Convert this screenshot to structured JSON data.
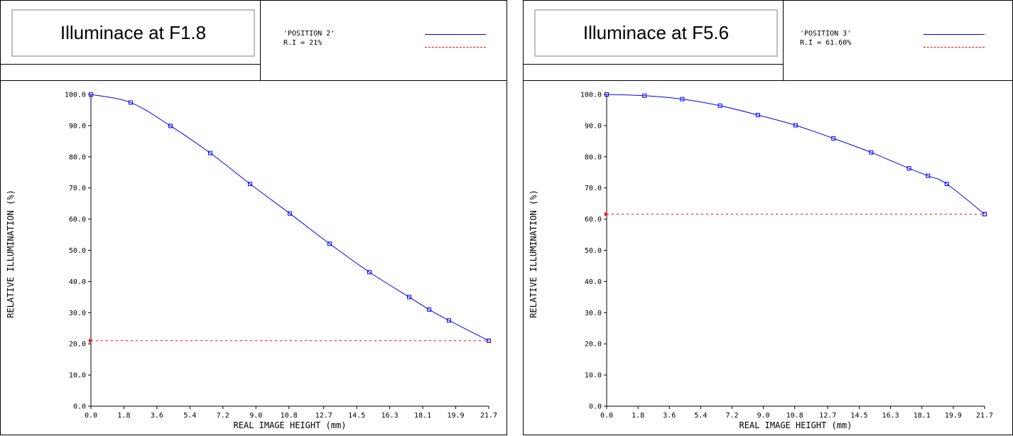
{
  "panels": [
    {
      "title": "Illuminace at F1.8",
      "legend": {
        "series_label": "'POSITION 2'",
        "ri_label": "R.I = 21%"
      }
    },
    {
      "title": "Illuminace at F5.6",
      "legend": {
        "series_label": "'POSITION 3'",
        "ri_label": "R.I = 61.60%"
      }
    }
  ],
  "colors": {
    "series": "#0000ff",
    "reference": "#ff0000"
  },
  "chart_data": [
    {
      "type": "line",
      "title": "Illuminace at F1.8",
      "xlabel": "REAL IMAGE HEIGHT (mm)",
      "ylabel": "RELATIVE ILLUMINATION (%)",
      "xlim": [
        0,
        21.7
      ],
      "ylim": [
        0,
        100
      ],
      "x_ticks": [
        "0.0",
        "1.8",
        "3.6",
        "5.4",
        "7.2",
        "9.0",
        "10.8",
        "12.7",
        "14.5",
        "16.3",
        "18.1",
        "19.9",
        "21.7"
      ],
      "y_ticks": [
        "0.0",
        "10.0",
        "20.0",
        "30.0",
        "40.0",
        "50.0",
        "60.0",
        "70.0",
        "80.0",
        "90.0",
        "100.0"
      ],
      "grid": false,
      "series": [
        {
          "name": "'POSITION 2'",
          "x": [
            0,
            2.17,
            4.34,
            6.51,
            8.68,
            10.85,
            13.02,
            15.19,
            17.36,
            18.45,
            19.53,
            21.7
          ],
          "y": [
            100,
            97.4,
            89.9,
            81.2,
            71.3,
            61.8,
            52.1,
            43.0,
            35.0,
            31.0,
            27.5,
            21.0
          ]
        },
        {
          "name": "R.I = 21%",
          "style": "dashed",
          "x": [
            0,
            21.7
          ],
          "y": [
            21,
            21
          ]
        }
      ]
    },
    {
      "type": "line",
      "title": "Illuminace at F5.6",
      "xlabel": "REAL IMAGE HEIGHT (mm)",
      "ylabel": "RELATIVE ILLUMINATION (%)",
      "xlim": [
        0,
        21.7
      ],
      "ylim": [
        0,
        100
      ],
      "x_ticks": [
        "0.0",
        "1.8",
        "3.6",
        "5.4",
        "7.2",
        "9.0",
        "10.8",
        "12.7",
        "14.5",
        "16.3",
        "18.1",
        "19.9",
        "21.7"
      ],
      "y_ticks": [
        "0.0",
        "10.0",
        "20.0",
        "30.0",
        "40.0",
        "50.0",
        "60.0",
        "70.0",
        "80.0",
        "90.0",
        "100.0"
      ],
      "grid": false,
      "series": [
        {
          "name": "'POSITION 3'",
          "x": [
            0,
            2.17,
            4.34,
            6.51,
            8.68,
            10.85,
            13.02,
            15.19,
            17.36,
            18.45,
            19.53,
            21.7
          ],
          "y": [
            100,
            99.6,
            98.5,
            96.4,
            93.4,
            90.1,
            85.9,
            81.4,
            76.3,
            73.9,
            71.3,
            61.6
          ]
        },
        {
          "name": "R.I = 61.60%",
          "style": "dashed",
          "x": [
            0,
            21.7
          ],
          "y": [
            61.6,
            61.6
          ]
        }
      ]
    }
  ]
}
